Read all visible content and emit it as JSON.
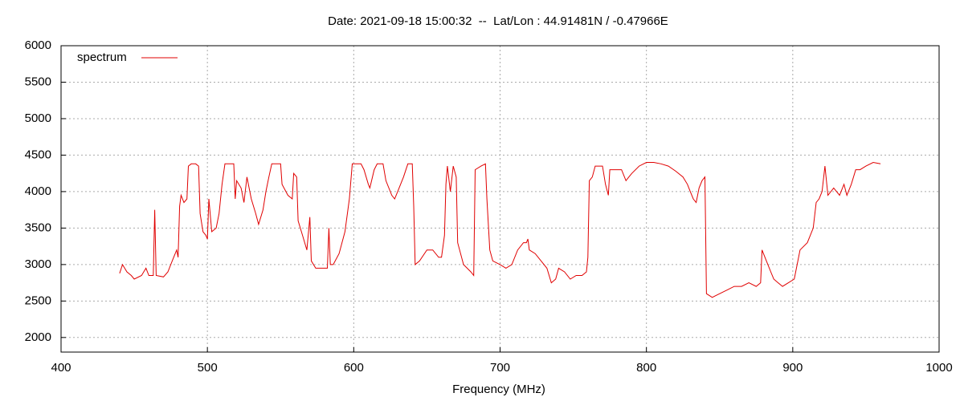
{
  "chart_data": {
    "type": "line",
    "title": "Date: 2021-09-18 15:00:32  --  Lat/Lon : 44.91481N / -0.47966E",
    "x_label": "Frequency (MHz)",
    "xlim": [
      400,
      1000
    ],
    "xticks": [
      400,
      500,
      600,
      700,
      800,
      900,
      1000
    ],
    "ylim": [
      1800,
      6000
    ],
    "yticks": [
      2000,
      2500,
      3000,
      3500,
      4000,
      4500,
      5000,
      5500,
      6000
    ],
    "grid": true,
    "legend": "upper left",
    "x": [
      440,
      442,
      445,
      448,
      450,
      455,
      458,
      460,
      463,
      464,
      465,
      470,
      473,
      476,
      479,
      480,
      481,
      482,
      484,
      486,
      487,
      489,
      492,
      494,
      495,
      497,
      499,
      500,
      501,
      503,
      506,
      508,
      510,
      512,
      515,
      518,
      519,
      520,
      523,
      525,
      527,
      530,
      533,
      535,
      538,
      540,
      542,
      544,
      548,
      550,
      551,
      555,
      558,
      559,
      561,
      562,
      565,
      568,
      570,
      571,
      574,
      577,
      580,
      582,
      583,
      584,
      586,
      590,
      594,
      597,
      599,
      605,
      607,
      610,
      611,
      614,
      616,
      620,
      622,
      626,
      628,
      631,
      634,
      637,
      640,
      641,
      642,
      645,
      650,
      654,
      658,
      660,
      662,
      663,
      664,
      666,
      668,
      670,
      671,
      675,
      680,
      682,
      683,
      687,
      690,
      691,
      693,
      695,
      700,
      704,
      708,
      712,
      716,
      718,
      719,
      720,
      724,
      728,
      732,
      735,
      738,
      740,
      744,
      748,
      752,
      756,
      759,
      760,
      761,
      763,
      765,
      770,
      772,
      774,
      775,
      780,
      783,
      786,
      788,
      790,
      795,
      800,
      805,
      810,
      815,
      820,
      825,
      828,
      830,
      832,
      834,
      836,
      838,
      840,
      841,
      845,
      850,
      855,
      860,
      865,
      870,
      875,
      878,
      879,
      882,
      885,
      887,
      890,
      893,
      897,
      901,
      903,
      905,
      910,
      914,
      916,
      918,
      920,
      922,
      924,
      928,
      932,
      935,
      937,
      940,
      943,
      946,
      950,
      955,
      960
    ],
    "series": [
      {
        "name": "spectrum",
        "color": "#e00000",
        "values": [
          2880,
          3000,
          2900,
          2850,
          2800,
          2850,
          2950,
          2850,
          2850,
          3750,
          2850,
          2830,
          2900,
          3050,
          3200,
          3100,
          3800,
          3950,
          3850,
          3900,
          4350,
          4380,
          4380,
          4350,
          3700,
          3450,
          3400,
          3350,
          3900,
          3450,
          3500,
          3700,
          4100,
          4380,
          4380,
          4380,
          3900,
          4150,
          4050,
          3850,
          4200,
          3900,
          3700,
          3550,
          3750,
          4000,
          4200,
          4380,
          4380,
          4380,
          4100,
          3950,
          3900,
          4250,
          4200,
          3600,
          3400,
          3200,
          3650,
          3050,
          2950,
          2950,
          2950,
          2950,
          3500,
          3000,
          3000,
          3150,
          3450,
          3900,
          4380,
          4380,
          4300,
          4100,
          4050,
          4300,
          4380,
          4380,
          4150,
          3950,
          3900,
          4050,
          4200,
          4380,
          4380,
          3800,
          3000,
          3050,
          3200,
          3200,
          3100,
          3100,
          3400,
          4100,
          4350,
          4000,
          4350,
          4200,
          3300,
          3000,
          2900,
          2850,
          4300,
          4350,
          4380,
          3900,
          3200,
          3050,
          3000,
          2950,
          3000,
          3200,
          3300,
          3300,
          3350,
          3200,
          3150,
          3050,
          2950,
          2750,
          2800,
          2950,
          2900,
          2800,
          2850,
          2850,
          2900,
          3100,
          4150,
          4200,
          4350,
          4350,
          4100,
          3950,
          4300,
          4300,
          4300,
          4150,
          4200,
          4250,
          4350,
          4400,
          4400,
          4380,
          4350,
          4280,
          4200,
          4100,
          4000,
          3900,
          3850,
          4050,
          4150,
          4200,
          2600,
          2550,
          2600,
          2650,
          2700,
          2700,
          2750,
          2700,
          2750,
          3200,
          3050,
          2900,
          2800,
          2750,
          2700,
          2750,
          2800,
          3000,
          3200,
          3300,
          3500,
          3850,
          3900,
          4000,
          4350,
          3950,
          4050,
          3950,
          4100,
          3950,
          4100,
          4300,
          4300,
          4350,
          4400,
          4380
        ]
      }
    ]
  }
}
